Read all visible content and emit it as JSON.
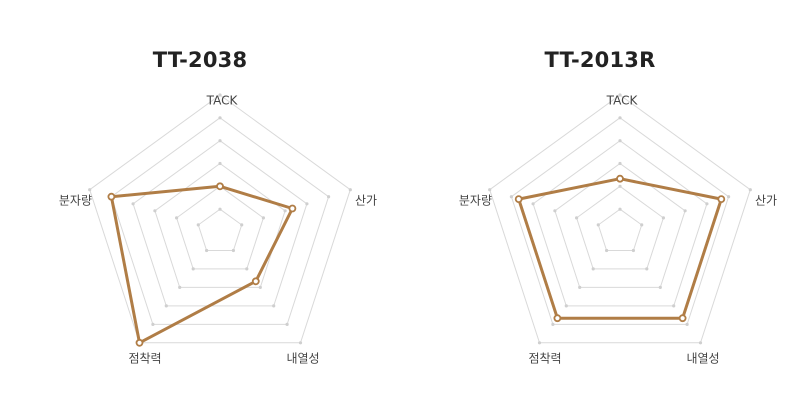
{
  "chart_data": [
    {
      "type": "radar",
      "title": "TT-2038",
      "axes": [
        "TACK",
        "산가",
        "내열성",
        "점착력",
        "분자량"
      ],
      "values": [
        3.0,
        5.0,
        4.0,
        9.0,
        7.5
      ],
      "max": 9,
      "levels": 6,
      "series_color": "#b07d46",
      "grid_color": "#d9d9d9"
    },
    {
      "type": "radar",
      "title": "TT-2013R",
      "axes": [
        "TACK",
        "산가",
        "내열성",
        "점착력",
        "분자량"
      ],
      "values": [
        3.5,
        7.0,
        7.0,
        7.0,
        7.0
      ],
      "max": 9,
      "levels": 6,
      "series_color": "#b07d46",
      "grid_color": "#d9d9d9"
    }
  ]
}
